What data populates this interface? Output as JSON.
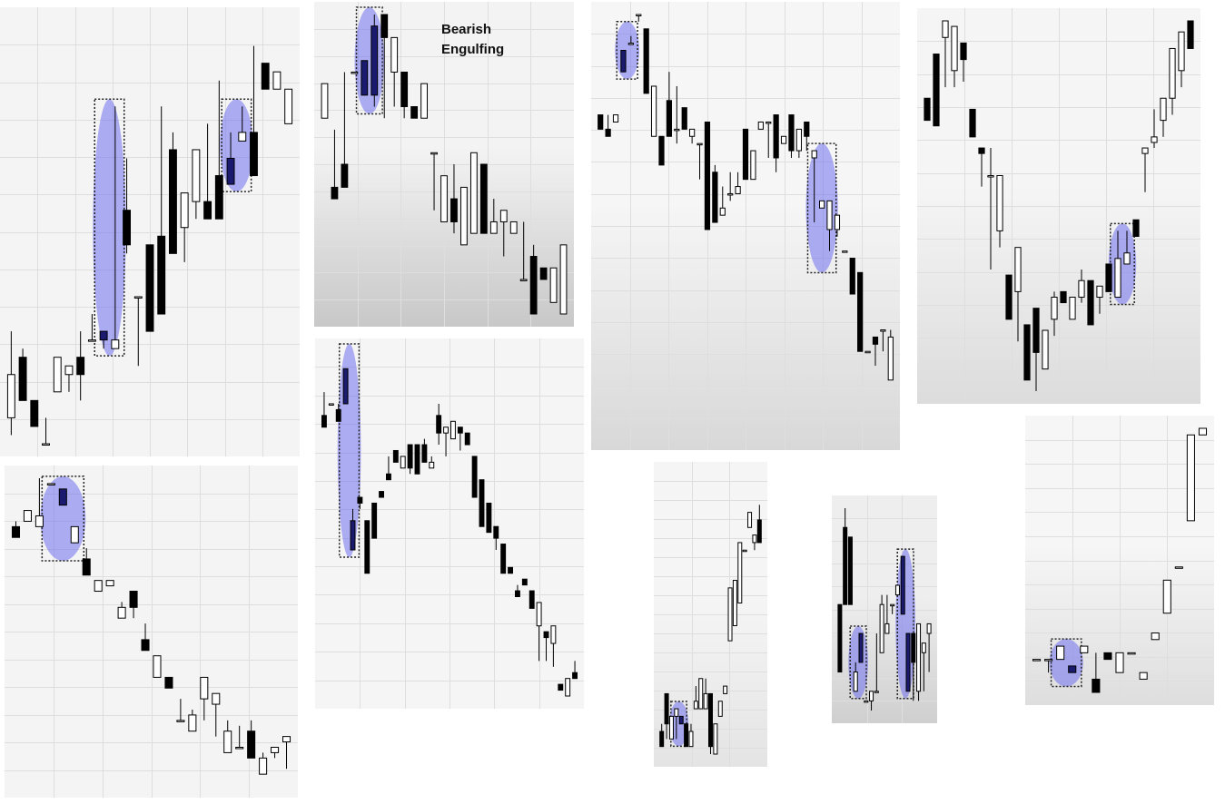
{
  "annotation": {
    "line1": "Bearish",
    "line2": "Engulfing"
  },
  "colors": {
    "bull_fill": "#ffffff",
    "bear_fill": "#000000",
    "wick": "#000000",
    "highlight": "#6f6ff0",
    "grid": "#dedede",
    "focus_body": "#1a1a6e"
  },
  "chart_data": [
    {
      "type": "candlestick",
      "name": "top-left",
      "candles": [
        [
          20,
          30,
          18,
          25
        ],
        [
          27,
          28,
          30,
          22
        ],
        [
          22,
          20,
          26,
          19
        ],
        [
          17,
          20,
          22,
          17
        ],
        [
          23,
          27,
          23,
          27
        ],
        [
          25,
          24,
          23,
          26
        ],
        [
          27,
          30,
          22,
          25
        ],
        [
          29,
          32,
          31,
          29
        ],
        [
          30,
          30,
          28,
          29
        ],
        [
          28,
          56,
          54,
          29
        ],
        [
          44,
          50,
          39,
          40
        ],
        [
          34,
          31,
          26,
          34
        ],
        [
          40,
          38,
          46,
          30
        ],
        [
          41,
          56,
          44,
          32
        ],
        [
          51,
          53,
          66,
          39
        ],
        [
          42,
          46,
          38,
          46
        ],
        [
          45,
          45,
          43,
          51
        ],
        [
          45,
          54,
          48,
          43
        ],
        [
          48,
          59,
          52,
          43
        ],
        [
          50,
          53,
          56,
          47
        ],
        [
          52,
          56,
          56,
          53
        ],
        [
          53,
          63,
          58,
          48
        ],
        [
          61,
          56,
          66,
          58
        ],
        [
          58,
          59,
          59,
          60
        ],
        [
          54,
          54,
          56,
          58
        ]
      ],
      "highlights": [
        [
          8,
          9
        ],
        [
          19,
          20
        ]
      ]
    },
    {
      "type": "candlestick",
      "name": "top-middle-left",
      "candles": [
        [
          29,
          25,
          33,
          32
        ],
        [
          23,
          28,
          28,
          22
        ],
        [
          25,
          33,
          36,
          23
        ],
        [
          33,
          33,
          33,
          33
        ],
        [
          34,
          32,
          36,
          31
        ],
        [
          37,
          38,
          30,
          31
        ],
        [
          38,
          36,
          29,
          36
        ],
        [
          33,
          31,
          30,
          36
        ],
        [
          33,
          33,
          29,
          30
        ],
        [
          30,
          29,
          32,
          29
        ],
        [
          29,
          31,
          30,
          32
        ],
        [
          26,
          22,
          21,
          26
        ],
        [
          20,
          18,
          20,
          24
        ],
        [
          22,
          25,
          19,
          20
        ],
        [
          18,
          19,
          18,
          23
        ],
        [
          19,
          20,
          21,
          26
        ],
        [
          25,
          20,
          23,
          19
        ],
        [
          19,
          22,
          20,
          20
        ],
        [
          20,
          18,
          17,
          21
        ],
        [
          19,
          19,
          21,
          20
        ],
        [
          15,
          20,
          19,
          15
        ],
        [
          17,
          18,
          19,
          12
        ],
        [
          16,
          13,
          16,
          15
        ],
        [
          13,
          16,
          15,
          16
        ],
        [
          12,
          12,
          19,
          18
        ]
      ],
      "highlights": [
        [
          4,
          5
        ]
      ]
    },
    {
      "type": "candlestick",
      "name": "top-middle-right",
      "candles": [
        [
          36,
          36,
          34,
          34
        ],
        [
          34,
          36,
          34,
          33
        ],
        [
          35,
          35,
          35,
          36
        ],
        [
          45,
          44,
          42,
          42
        ],
        [
          46,
          47,
          48,
          46
        ],
        [
          50,
          47,
          49,
          50
        ],
        [
          48,
          48,
          41,
          39
        ],
        [
          33,
          40,
          33,
          40
        ],
        [
          33,
          31,
          31,
          29
        ],
        [
          38,
          42,
          33,
          33
        ],
        [
          34,
          40,
          32,
          34
        ],
        [
          37,
          37,
          38,
          34
        ],
        [
          33,
          30,
          32,
          34
        ],
        [
          32,
          28,
          27,
          32
        ],
        [
          35,
          26,
          36,
          20
        ],
        [
          28,
          29,
          26,
          21
        ],
        [
          22,
          26,
          22,
          23
        ],
        [
          25,
          28,
          24,
          25
        ],
        [
          25,
          28,
          28,
          26
        ],
        [
          34,
          33,
          32,
          27
        ],
        [
          27,
          31,
          34,
          31
        ],
        [
          34,
          27,
          34,
          35
        ],
        [
          35,
          32,
          30,
          35
        ],
        [
          36,
          32,
          28,
          30
        ],
        [
          32,
          31,
          32,
          33
        ],
        [
          36,
          31,
          30,
          31
        ],
        [
          31,
          31,
          30,
          34
        ],
        [
          35,
          30,
          31,
          33
        ],
        [
          30,
          26,
          21,
          31
        ],
        [
          23,
          23,
          24,
          24
        ],
        [
          20,
          15,
          17,
          24
        ],
        [
          20,
          19,
          19,
          22
        ],
        [
          17,
          15,
          19,
          17
        ],
        [
          16,
          15,
          16,
          11
        ],
        [
          14,
          -9,
          14,
          3
        ],
        [
          3,
          -5,
          6,
          3
        ],
        [
          5,
          -6,
          1,
          4
        ],
        [
          6,
          1,
          3,
          6
        ],
        [
          -1,
          6,
          3,
          5
        ]
      ],
      "highlights": [
        [
          3,
          4
        ],
        [
          28,
          30
        ]
      ]
    },
    {
      "type": "candlestick",
      "name": "top-right",
      "candles": [
        [
          66,
          66,
          63,
          62
        ],
        [
          74,
          71,
          65,
          61
        ],
        [
          77,
          71,
          68,
          80
        ],
        [
          71,
          77,
          68,
          79
        ],
        [
          76,
          69,
          69,
          73
        ],
        [
          64,
          59,
          62,
          59
        ],
        [
          57,
          56,
          50,
          56
        ],
        [
          52,
          57,
          35,
          52
        ],
        [
          42,
          43,
          39,
          52
        ],
        [
          34,
          34,
          32,
          26
        ],
        [
          31,
          36,
          22,
          39
        ],
        [
          25,
          14,
          20,
          15
        ],
        [
          28,
          24,
          13,
          20
        ],
        [
          17,
          17,
          31,
          24
        ],
        [
          26,
          31,
          23,
          30
        ],
        [
          31,
          27,
          32,
          29
        ],
        [
          26,
          26,
          32,
          30
        ],
        [
          30,
          35,
          29,
          33
        ],
        [
          33,
          32,
          33,
          25
        ],
        [
          30,
          29,
          27,
          32
        ],
        [
          36,
          30,
          31,
          31
        ],
        [
          30,
          42,
          37,
          37
        ],
        [
          36,
          42,
          40,
          38
        ],
        [
          44,
          43,
          53,
          41
        ],
        [
          56,
          47,
          49,
          57
        ],
        [
          58,
          64,
          57,
          59
        ],
        [
          62,
          66,
          59,
          66
        ],
        [
          66,
          68,
          63,
          75
        ],
        [
          71,
          75,
          68,
          78
        ],
        [
          80,
          75,
          76,
          75
        ]
      ],
      "highlights": [
        [
          21,
          22
        ]
      ]
    },
    {
      "type": "candlestick",
      "name": "middle-left",
      "candles": [
        [
          45,
          49,
          43,
          43
        ],
        [
          47,
          45,
          49,
          47
        ],
        [
          46,
          47,
          44,
          44
        ],
        [
          53,
          51,
          56,
          47
        ],
        [
          27,
          29,
          29,
          22
        ],
        [
          31,
          31,
          29,
          30
        ],
        [
          27,
          24,
          20,
          18
        ],
        [
          30,
          29,
          29,
          24
        ],
        [
          32,
          31,
          34,
          31
        ],
        [
          35,
          38,
          40,
          34
        ],
        [
          39,
          38,
          39,
          37
        ],
        [
          36,
          38,
          37,
          38
        ],
        [
          40,
          38,
          35,
          36
        ],
        [
          40,
          35,
          36,
          35
        ],
        [
          40,
          41,
          39,
          37
        ],
        [
          36,
          38,
          39,
          37
        ],
        [
          45,
          47,
          40,
          42
        ],
        [
          42,
          40,
          38,
          43
        ],
        [
          41,
          38,
          44,
          44
        ],
        [
          43,
          39,
          39,
          42
        ],
        [
          42,
          41,
          41,
          40
        ],
        [
          38,
          29,
          33,
          31
        ],
        [
          34,
          29,
          32,
          26
        ],
        [
          30,
          25,
          27,
          25
        ],
        [
          26,
          20,
          22,
          24
        ],
        [
          23,
          16,
          23,
          18
        ],
        [
          19,
          11,
          21,
          18
        ],
        [
          15,
          16,
          20,
          14
        ],
        [
          17,
          17,
          17,
          16
        ],
        [
          15,
          13,
          16,
          12
        ],
        [
          9,
          7,
          3,
          13
        ],
        [
          8,
          2,
          3,
          7
        ],
        [
          6,
          5,
          2,
          9
        ],
        [
          -1,
          -3,
          4,
          -2
        ],
        [
          -3,
          -3,
          -2,
          0
        ],
        [
          1,
          3,
          0,
          0
        ]
      ],
      "highlights": [
        [
          3,
          4
        ]
      ]
    },
    {
      "type": "candlestick",
      "name": "bottom-left",
      "candles": [
        [
          8,
          9,
          8,
          6
        ],
        [
          9,
          8,
          13,
          11
        ],
        [
          8,
          17,
          10,
          10
        ],
        [
          16,
          16,
          16,
          16
        ],
        [
          15,
          15,
          15,
          12
        ],
        [
          5,
          3,
          7,
          8
        ],
        [
          2,
          4,
          -1,
          -1
        ],
        [
          -4,
          -4,
          0,
          -2
        ],
        [
          -3,
          -3,
          0,
          -2
        ],
        [
          -9,
          -6,
          -9,
          -7
        ],
        [
          -4,
          -9,
          -9,
          -7
        ],
        [
          -13,
          -10,
          -10,
          -15
        ],
        [
          -20,
          -21,
          -20,
          -16
        ],
        [
          -20,
          -27,
          -21,
          -22
        ],
        [
          -28,
          -24,
          -24,
          -28
        ],
        [
          -30,
          -26,
          -25,
          -27
        ],
        [
          -24,
          -27,
          -28,
          -20
        ],
        [
          -25,
          -30,
          -31,
          -23
        ],
        [
          -34,
          -28,
          -30,
          -30
        ],
        [
          -33,
          -29,
          -30,
          -33
        ],
        [
          -30,
          -28,
          -32,
          -35
        ],
        [
          -38,
          -34,
          -36,
          -35
        ],
        [
          -34,
          -39,
          -35,
          -33
        ],
        [
          -32,
          -40,
          -37,
          -31
        ]
      ],
      "highlights": [
        [
          3,
          5
        ]
      ]
    },
    {
      "type": "candlestick",
      "name": "bottom-middle",
      "candles": [
        [
          -8,
          -7,
          -9,
          -10
        ],
        [
          -3,
          -8,
          -9,
          -7
        ],
        [
          -9,
          -8,
          -7,
          -6
        ],
        [
          -6,
          -9,
          -9,
          -5
        ],
        [
          -6,
          -9,
          -6,
          -7
        ],
        [
          -7,
          -8,
          -8,
          -10
        ],
        [
          -10,
          -7,
          -5,
          -8
        ],
        [
          -5,
          -2,
          -3,
          -4
        ],
        [
          -5,
          -5,
          -4,
          -1
        ],
        [
          -5,
          -1,
          -4,
          -3
        ],
        [
          -3,
          -7,
          -11,
          -10
        ],
        [
          -11,
          -10,
          -10,
          -7
        ],
        [
          -6,
          -7,
          -6,
          -4
        ],
        [
          -3,
          -2,
          -2,
          -2
        ],
        [
          4,
          4,
          9,
          11
        ],
        [
          6,
          7,
          8,
          12
        ],
        [
          9,
          11,
          17,
          17
        ],
        [
          16,
          16,
          19,
          16
        ],
        [
          19,
          18,
          19,
          21
        ],
        [
          17,
          16,
          16,
          18
        ],
        [
          20,
          22,
          26,
          17
        ]
      ],
      "highlights": [
        [
          3,
          4
        ]
      ]
    },
    {
      "type": "candlestick",
      "name": "bottom-middle-right",
      "candles": [
        [
          40,
          40,
          36,
          33
        ],
        [
          48,
          50,
          45,
          40
        ],
        [
          47,
          45,
          40,
          40
        ],
        [
          31,
          34,
          36,
          33
        ],
        [
          37,
          32,
          36,
          34
        ],
        [
          30,
          29,
          30,
          30
        ],
        [
          30,
          30,
          29,
          31
        ],
        [
          31,
          37,
          37,
          31
        ],
        [
          35,
          41,
          37,
          40
        ],
        [
          37,
          41,
          37,
          38
        ],
        [
          40,
          38,
          39,
          40
        ],
        [
          41,
          42,
          43,
          42
        ],
        [
          45,
          45,
          39,
          39
        ],
        [
          37,
          32,
          35,
          31
        ],
        [
          37,
          35,
          30,
          34
        ],
        [
          31,
          36,
          30,
          38
        ],
        [
          35,
          36,
          31,
          36
        ],
        [
          37,
          34,
          33,
          38
        ]
      ],
      "highlights": [
        [
          3,
          4
        ],
        [
          12,
          13
        ]
      ]
    },
    {
      "type": "candlestick",
      "name": "bottom-right",
      "candles": [
        [
          36,
          36,
          36,
          36
        ],
        [
          36,
          36,
          34,
          36
        ],
        [
          36,
          36,
          37,
          38
        ],
        [
          35,
          33,
          35,
          34
        ],
        [
          37,
          37,
          37,
          38
        ],
        [
          33,
          37,
          35,
          31
        ],
        [
          37,
          35,
          36,
          36
        ],
        [
          34,
          36,
          37,
          37
        ],
        [
          37,
          37,
          39,
          37
        ],
        [
          33,
          33,
          35,
          34
        ],
        [
          39,
          39,
          41,
          40
        ],
        [
          43,
          43,
          47,
          48
        ],
        [
          50,
          47,
          50,
          50
        ],
        [
          57,
          57,
          67,
          70
        ],
        [
          70,
          69,
          71,
          71
        ]
      ],
      "highlights": [
        [
          2,
          3
        ]
      ]
    }
  ]
}
